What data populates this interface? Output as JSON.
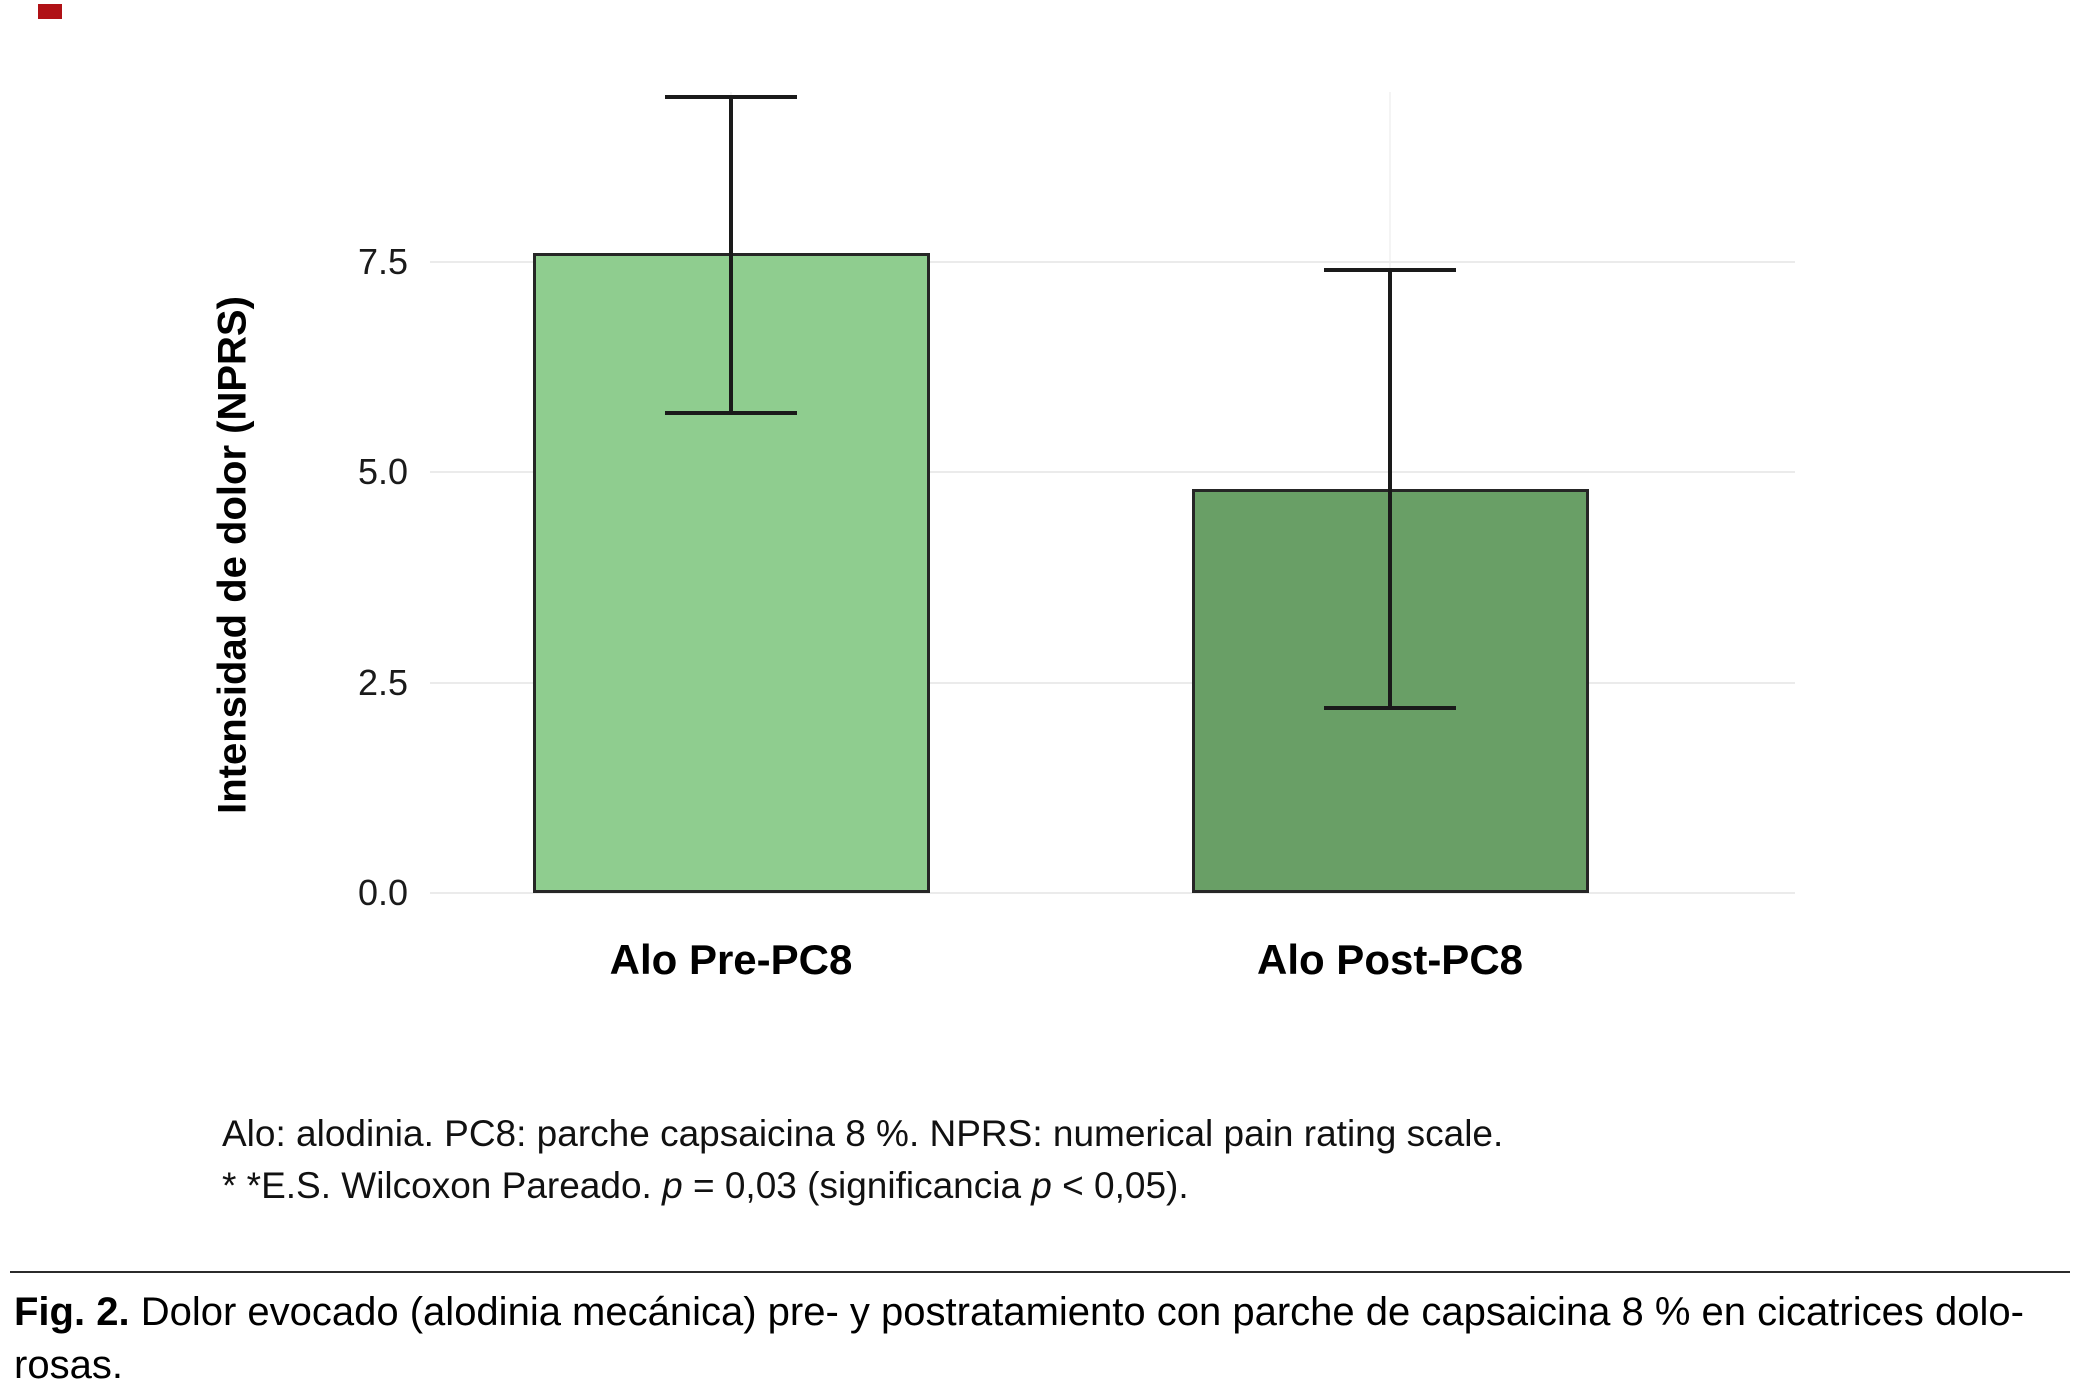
{
  "figure": {
    "footnotes": {
      "line1": "Alo: alodinia. PC8: parche capsaicina 8 %. NPRS: numerical pain rating scale.",
      "line2_parts": {
        "a": "* *E.S. Wilcoxon Pareado. ",
        "p1": "p",
        "b": " = 0,03 (significancia ",
        "p2": "p",
        "c": " < 0,05)."
      }
    },
    "caption": {
      "label": "Fig. 2.",
      "text": " Dolor evocado (alodinia mecánica) pre- y postratamiento con parche de capsaicina 8 % en cicatrices dolo-\nrosas."
    }
  },
  "chart_data": {
    "type": "bar",
    "title": "",
    "categories": [
      "Alo Pre-PC8",
      "Alo Post-PC8"
    ],
    "values": [
      7.6,
      4.8
    ],
    "error_low": [
      5.7,
      2.2
    ],
    "error_high": [
      9.45,
      7.4
    ],
    "bar_colors": [
      "#8fcd8f",
      "#699f66"
    ],
    "bar_border_color": "#262626",
    "xlabel": "",
    "ylabel": "Intensidad de dolor (NPRS)",
    "yticks": [
      0,
      2.5,
      5,
      7.5
    ],
    "ytick_labels": [
      "0.0",
      "2.5",
      "5.0",
      "7.5"
    ],
    "ylim": [
      0,
      9.8
    ],
    "grid": true,
    "legend": false
  }
}
